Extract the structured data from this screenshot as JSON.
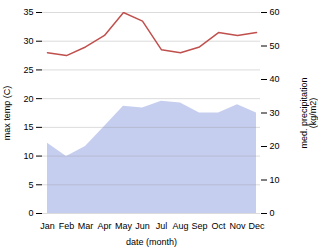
{
  "chart_data": {
    "type": "line",
    "categories": [
      "Jan",
      "Feb",
      "Mar",
      "Apr",
      "May",
      "Jun",
      "Jul",
      "Aug",
      "Sep",
      "Oct",
      "Nov",
      "Dec"
    ],
    "series": [
      {
        "type": "area",
        "axis": "y2",
        "color": "#c6cef0",
        "values": [
          21,
          17,
          20,
          26,
          32,
          31.5,
          33.5,
          33,
          30,
          30,
          32.5,
          30
        ]
      },
      {
        "type": "line",
        "color": "#c0504d",
        "values": [
          28,
          27.5,
          29,
          31,
          35,
          33.5,
          28.5,
          28,
          29,
          31.5,
          31,
          31.5
        ]
      }
    ],
    "x_label": "date (month)",
    "y_label": "max temp (C)",
    "y2_label": "med. precipitation\n(kg/m2)",
    "ylim": [
      0,
      35
    ],
    "yticks": [
      0,
      5,
      10,
      15,
      20,
      25,
      30,
      35
    ],
    "y2lim": [
      0,
      60
    ],
    "y2ticks": [
      0,
      10,
      20,
      30,
      40,
      50,
      60
    ],
    "grid": true
  }
}
